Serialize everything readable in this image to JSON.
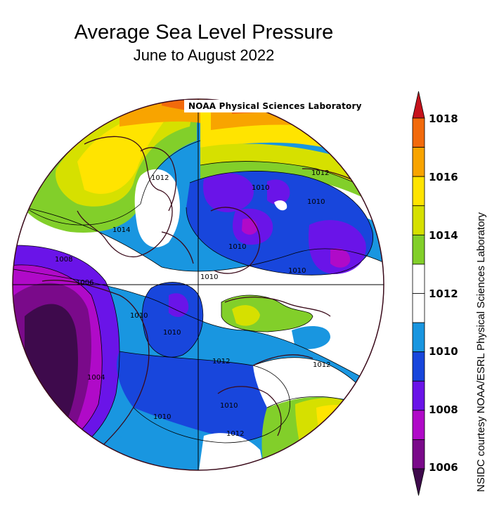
{
  "title": "Average Sea Level Pressure",
  "subtitle": "June to August 2022",
  "credit_box": "NOAA Physical Sciences Laboratory",
  "side_credit": "NSIDC courtesy NOAA/ESRL Physical Sciences Laboratory",
  "colorbar": {
    "ticks": [
      "1018",
      "1016",
      "1014",
      "1012",
      "1010",
      "1008",
      "1006"
    ],
    "bands_top_to_bottom": [
      "#c6121c",
      "#f26a0c",
      "#f8a400",
      "#ffe400",
      "#d6e000",
      "#82cf2a",
      "#ffffff",
      "#ffffff",
      "#1996e0",
      "#1846dc",
      "#6a14e8",
      "#b00ac8",
      "#7a0a8a",
      "#3e0a4c"
    ]
  },
  "contour_labels": [
    "1012",
    "1014",
    "1010",
    "1010",
    "1012",
    "1010",
    "1010",
    "1010",
    "1008",
    "1006",
    "1010",
    "1010",
    "1012",
    "1004",
    "1010",
    "1012",
    "1010",
    "1012"
  ],
  "map_colors": {
    "p1004": "#3e0a4c",
    "p1006": "#7a0a8a",
    "p1008": "#b00ac8",
    "p1009": "#6a14e8",
    "p1010": "#1846dc",
    "p1011": "#1996e0",
    "p1012": "#ffffff",
    "p1014": "#82cf2a",
    "p1015": "#d6e000",
    "p1016": "#ffe400",
    "p1017": "#f8a400",
    "p1018": "#f26a0c"
  }
}
